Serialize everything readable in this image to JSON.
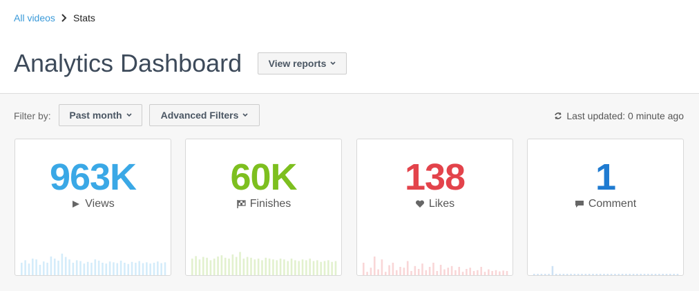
{
  "breadcrumb": {
    "link": "All videos",
    "current": "Stats"
  },
  "header": {
    "title": "Analytics Dashboard",
    "button": "View reports"
  },
  "filters": {
    "label": "Filter by:",
    "buttons": [
      "Past month",
      "Advanced Filters"
    ],
    "status": "Last updated: 0 minute ago"
  },
  "cards": [
    {
      "value": "963K",
      "label": "Views",
      "color": "#3aa8e6",
      "sparkline": [
        30,
        36,
        28,
        40,
        38,
        25,
        33,
        30,
        45,
        40,
        35,
        52,
        44,
        38,
        30,
        36,
        34,
        28,
        32,
        30,
        38,
        35,
        30,
        28,
        33,
        31,
        29,
        35,
        30,
        27,
        32,
        30,
        34,
        29,
        31,
        28,
        30,
        33,
        29,
        31
      ]
    },
    {
      "value": "60K",
      "label": "Finishes",
      "color": "#7dbf1f",
      "sparkline": [
        40,
        46,
        38,
        44,
        42,
        36,
        40,
        45,
        48,
        42,
        40,
        50,
        44,
        56,
        40,
        44,
        42,
        38,
        40,
        36,
        42,
        40,
        38,
        36,
        40,
        38,
        34,
        40,
        36,
        34,
        38,
        36,
        40,
        34,
        36,
        32,
        34,
        36,
        32,
        34
      ]
    },
    {
      "value": "138",
      "label": "Likes",
      "color": "#e3434b",
      "sparkline": [
        30,
        8,
        18,
        45,
        14,
        38,
        8,
        24,
        30,
        12,
        20,
        18,
        34,
        10,
        22,
        15,
        28,
        12,
        20,
        30,
        10,
        25,
        14,
        18,
        22,
        12,
        20,
        8,
        15,
        18,
        10,
        12,
        20,
        8,
        14,
        10,
        12,
        9,
        11,
        10
      ]
    },
    {
      "value": "1",
      "label": "Comment",
      "color": "#1f7bd1",
      "sparkline": [
        3,
        3,
        3,
        3,
        3,
        22,
        3,
        3,
        3,
        3,
        3,
        3,
        3,
        3,
        3,
        3,
        3,
        3,
        3,
        3,
        3,
        3,
        3,
        3,
        3,
        3,
        3,
        3,
        3,
        3,
        3,
        3,
        3,
        3,
        3,
        3,
        3,
        3,
        3,
        3
      ]
    }
  ]
}
